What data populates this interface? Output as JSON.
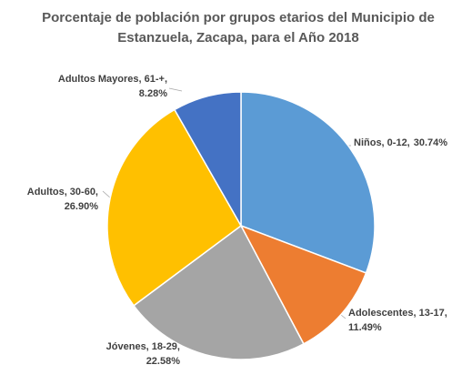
{
  "chart_data": {
    "type": "pie",
    "title": [
      "Porcentaje de población por grupos etarios del Municipio de",
      "Estanzuela, Zacapa, para el Año 2018"
    ],
    "categories": [
      "Niños, 0-12,",
      "Adolescentes, 13-17,",
      "Jóvenes, 18-29,",
      "Adultos, 30-60,",
      "Adultos Mayores, 61-+,"
    ],
    "values": [
      30.74,
      11.49,
      22.58,
      26.9,
      8.28
    ],
    "value_labels": [
      "30.74%",
      "11.49%",
      "22.58%",
      "26.90%",
      "8.28%"
    ],
    "colors": [
      "#5b9bd5",
      "#ed7d31",
      "#a5a5a5",
      "#ffc000",
      "#4472c4"
    ]
  }
}
